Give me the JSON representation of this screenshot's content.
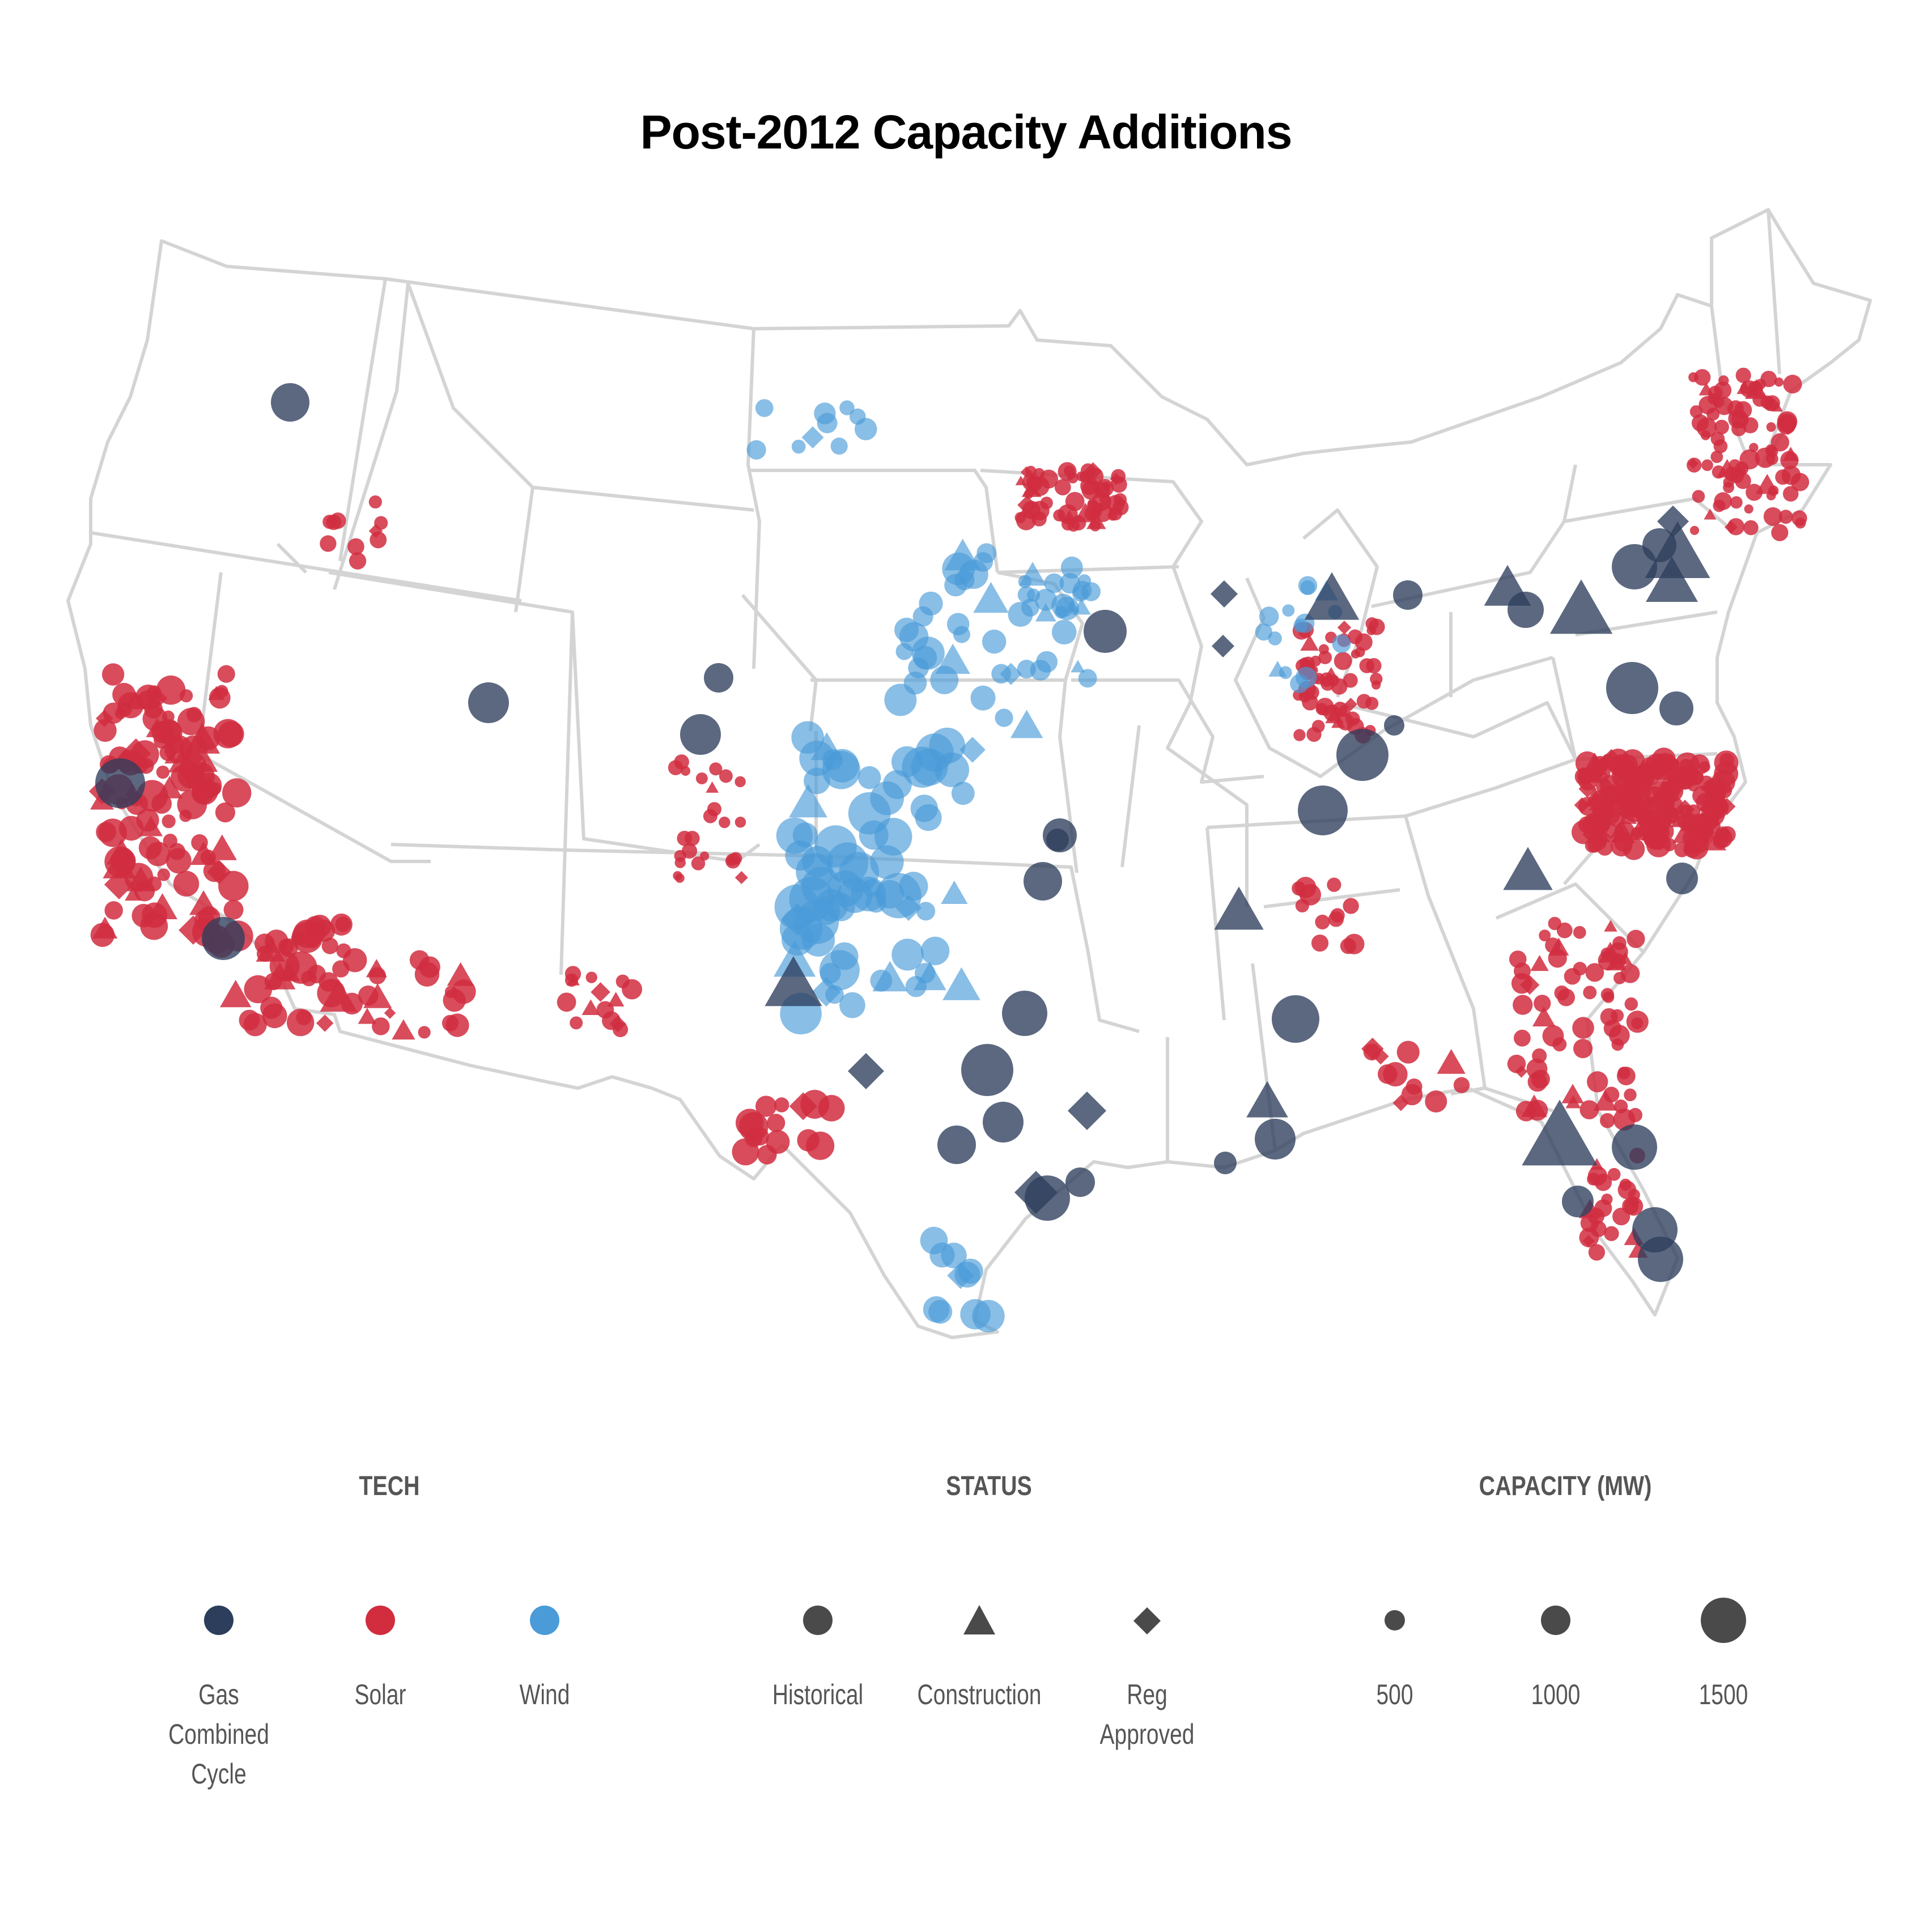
{
  "title": "Post-2012 Capacity Additions",
  "colors": {
    "gas": "#2d3e5c",
    "solar": "#d12d3f",
    "wind": "#4a9bd8",
    "neutral": "#4a4a4a",
    "state_border": "#d0d0d0"
  },
  "legend": {
    "tech": {
      "heading": "TECH",
      "items": [
        {
          "label": "Gas\nCombined\nCycle",
          "color": "#2d3e5c",
          "icon": "circle-icon"
        },
        {
          "label": "Solar",
          "color": "#d12d3f",
          "icon": "circle-icon"
        },
        {
          "label": "Wind",
          "color": "#4a9bd8",
          "icon": "circle-icon"
        }
      ]
    },
    "status": {
      "heading": "STATUS",
      "items": [
        {
          "label": "Historical",
          "icon": "circle-icon"
        },
        {
          "label": "Construction",
          "icon": "triangle-icon"
        },
        {
          "label": "Reg\nApproved",
          "icon": "diamond-icon"
        }
      ]
    },
    "capacity": {
      "heading": "CAPACITY (MW)",
      "items": [
        {
          "label": "500",
          "value": 500
        },
        {
          "label": "1000",
          "value": 1000
        },
        {
          "label": "1500",
          "value": 1500
        }
      ]
    }
  }
}
